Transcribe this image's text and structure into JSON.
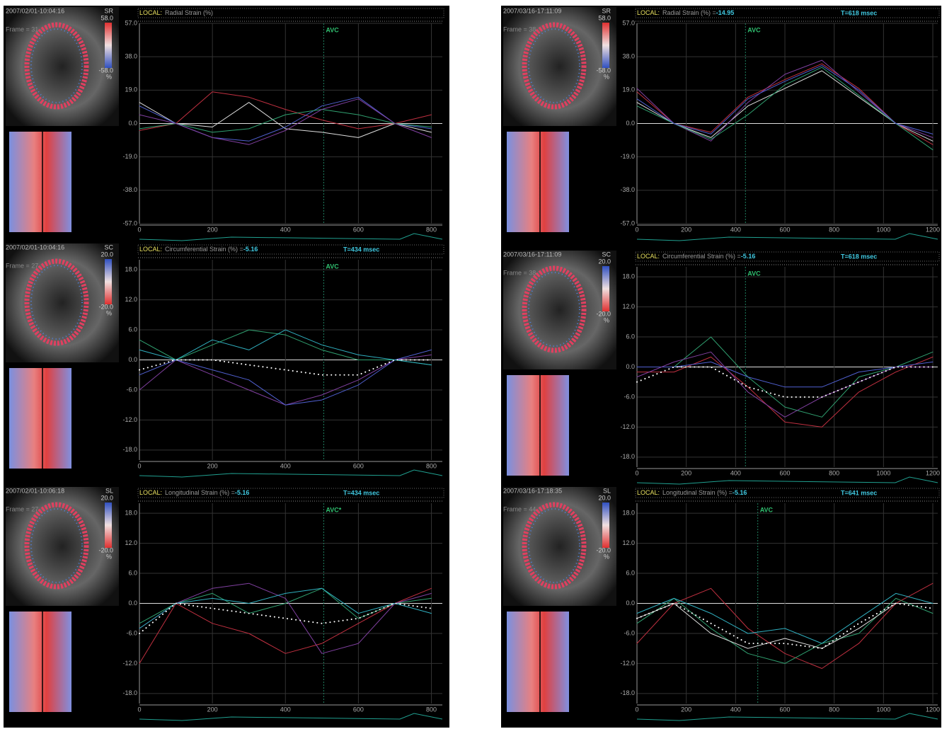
{
  "chart_data": [
    {
      "type": "line",
      "timestamp": "2007/02/01-10:04:16",
      "frame": "Frame = 31",
      "colorbar": {
        "label": "SR",
        "max": "58.0",
        "min": "-58.0",
        "unit": "%",
        "colors": [
          "#e03030",
          "#f0e0e0",
          "#3050c0"
        ]
      },
      "header": {
        "prefix": "LOCAL:",
        "title": "Radial Strain (%)"
      },
      "avc": {
        "label": "AVC",
        "x": 505
      },
      "xlim": [
        0,
        830
      ],
      "xticks": [
        0,
        200,
        400,
        600,
        800
      ],
      "ylim": [
        -57,
        57
      ],
      "yticks": [
        {
          "value": 57,
          "label": "57.0"
        },
        {
          "value": 38,
          "label": "38.0"
        },
        {
          "value": 19,
          "label": "19.0"
        },
        {
          "value": 0,
          "label": "0.0"
        },
        {
          "value": -19,
          "label": "-19.0"
        },
        {
          "value": -38,
          "label": "-38.0"
        },
        {
          "value": -57,
          "label": "-57.0"
        }
      ],
      "x": [
        0,
        100,
        200,
        300,
        400,
        500,
        600,
        700,
        800
      ],
      "series": [
        {
          "color": "#c03040",
          "values": [
            -4,
            0,
            18,
            15,
            8,
            2,
            -3,
            0,
            5
          ]
        },
        {
          "color": "#dddddd",
          "values": [
            12,
            0,
            -2,
            12,
            -3,
            -5,
            -8,
            0,
            -5
          ]
        },
        {
          "color": "#5060d0",
          "values": [
            10,
            0,
            -8,
            -10,
            -2,
            10,
            15,
            0,
            -3
          ]
        },
        {
          "color": "#30a070",
          "values": [
            -3,
            0,
            -5,
            -3,
            5,
            8,
            5,
            0,
            -2
          ]
        },
        {
          "color": "#8040a0",
          "values": [
            5,
            0,
            -8,
            -12,
            -4,
            8,
            14,
            0,
            -8
          ]
        }
      ]
    },
    {
      "type": "line",
      "timestamp": "2007/02/01-10:04:16",
      "frame": "Frame = 27",
      "colorbar": {
        "label": "SC",
        "max": "20.0",
        "min": "-20.0",
        "unit": "%",
        "colors": [
          "#3050c0",
          "#f0e0e0",
          "#e03030"
        ]
      },
      "header": {
        "prefix": "LOCAL:",
        "title": "Circumferential Strain (%) =",
        "value": -5.16,
        "time": "T=434 msec"
      },
      "avc": {
        "label": "AVC",
        "x": 505
      },
      "xlim": [
        0,
        830
      ],
      "xticks": [
        0,
        200,
        400,
        600,
        800
      ],
      "ylim": [
        -20,
        20
      ],
      "yticks": [
        {
          "value": 18,
          "label": "18.0"
        },
        {
          "value": 12,
          "label": "12.0"
        },
        {
          "value": 6,
          "label": "6.0"
        },
        {
          "value": 0,
          "label": "0.0"
        },
        {
          "value": -6,
          "label": "-6.0"
        },
        {
          "value": -12,
          "label": "-12.0"
        },
        {
          "value": -18,
          "label": "-18.0"
        }
      ],
      "x": [
        0,
        100,
        200,
        300,
        400,
        500,
        600,
        700,
        800
      ],
      "series": [
        {
          "color": "#30a070",
          "values": [
            4,
            0,
            3,
            6,
            5,
            2,
            0,
            0,
            -1
          ]
        },
        {
          "color": "#8040a0",
          "values": [
            -6,
            0,
            -3,
            -6,
            -9,
            -7,
            -4,
            0,
            1
          ]
        },
        {
          "color": "#5060d0",
          "values": [
            -3,
            0,
            -2,
            -4,
            -9,
            -8,
            -5,
            0,
            2
          ]
        },
        {
          "color": "#30b0c0",
          "values": [
            2,
            0,
            4,
            2,
            6,
            3,
            1,
            0,
            -1
          ]
        },
        {
          "color": "#ffffff",
          "dotted": true,
          "values": [
            -2,
            0,
            0,
            -1,
            -2,
            -3,
            -3,
            0,
            0
          ]
        }
      ]
    },
    {
      "type": "line",
      "timestamp": "2007/02/01-10:06:18",
      "frame": "Frame = 27",
      "colorbar": {
        "label": "SL",
        "max": "20.0",
        "min": "-20.0",
        "unit": "%",
        "colors": [
          "#3050c0",
          "#f0e0e0",
          "#e03030"
        ]
      },
      "header": {
        "prefix": "LOCAL:",
        "title": "Longitudinal Strain (%) =",
        "value": -5.16,
        "time": "T=434 msec"
      },
      "avc": {
        "label": "AVC*",
        "x": 505
      },
      "xlim": [
        0,
        830
      ],
      "xticks": [
        0,
        200,
        400,
        600,
        800
      ],
      "ylim": [
        -20,
        20
      ],
      "yticks": [
        {
          "value": 18,
          "label": "18.0"
        },
        {
          "value": 12,
          "label": "12.0"
        },
        {
          "value": 6,
          "label": "6.0"
        },
        {
          "value": 0,
          "label": "0.0"
        },
        {
          "value": -6,
          "label": "-6.0"
        },
        {
          "value": -12,
          "label": "-12.0"
        },
        {
          "value": -18,
          "label": "-18.0"
        }
      ],
      "x": [
        0,
        100,
        200,
        300,
        400,
        500,
        600,
        700,
        800
      ],
      "series": [
        {
          "color": "#c03040",
          "values": [
            -12,
            0,
            -4,
            -6,
            -10,
            -8,
            -4,
            0,
            3
          ]
        },
        {
          "color": "#30a070",
          "values": [
            -4,
            0,
            2,
            -2,
            0,
            3,
            -3,
            0,
            1
          ]
        },
        {
          "color": "#8040a0",
          "values": [
            -5,
            0,
            3,
            4,
            1,
            -10,
            -8,
            0,
            2
          ]
        },
        {
          "color": "#30b0c0",
          "values": [
            -5,
            0,
            1,
            0,
            2,
            3,
            -2,
            0,
            -2
          ]
        },
        {
          "color": "#ffffff",
          "dotted": true,
          "values": [
            -6,
            0,
            -1,
            -2,
            -3,
            -4,
            -3,
            0,
            -1
          ]
        }
      ]
    },
    {
      "type": "line",
      "timestamp": "2007/03/16-17:11:09",
      "frame": "Frame = 38",
      "colorbar": {
        "label": "SR",
        "max": "58.0",
        "min": "-58.0",
        "unit": "%",
        "colors": [
          "#e03030",
          "#f0e0e0",
          "#3050c0"
        ]
      },
      "header": {
        "prefix": "LOCAL:",
        "title": "Radial Strain (%) =",
        "value": -14.95,
        "time": "T=618 msec"
      },
      "avc": {
        "label": "AVC",
        "x": 440
      },
      "xlim": [
        0,
        1220
      ],
      "xticks": [
        0,
        200,
        400,
        600,
        800,
        1000,
        1200
      ],
      "ylim": [
        -57,
        57
      ],
      "yticks": [
        {
          "value": 57,
          "label": "57.0"
        },
        {
          "value": 38,
          "label": "38.0"
        },
        {
          "value": 19,
          "label": "19.0"
        },
        {
          "value": 0,
          "label": "0.0"
        },
        {
          "value": -19,
          "label": "-19.0"
        },
        {
          "value": -38,
          "label": "-38.0"
        },
        {
          "value": -57,
          "label": "-57.0"
        }
      ],
      "x": [
        0,
        150,
        300,
        450,
        600,
        750,
        900,
        1050,
        1200
      ],
      "series": [
        {
          "color": "#dddddd",
          "values": [
            12,
            0,
            -8,
            10,
            20,
            30,
            15,
            0,
            -10
          ]
        },
        {
          "color": "#c03040",
          "values": [
            18,
            0,
            -5,
            15,
            25,
            34,
            20,
            0,
            -12
          ]
        },
        {
          "color": "#8040a0",
          "values": [
            20,
            0,
            -10,
            12,
            28,
            36,
            18,
            0,
            -8
          ]
        },
        {
          "color": "#30a070",
          "values": [
            10,
            0,
            -9,
            5,
            22,
            32,
            16,
            0,
            -15
          ]
        },
        {
          "color": "#5060d0",
          "values": [
            14,
            0,
            -6,
            14,
            24,
            33,
            19,
            0,
            -6
          ]
        }
      ]
    },
    {
      "type": "line",
      "timestamp": "2007/03/16-17:11:09",
      "frame": "Frame = 38",
      "colorbar": {
        "label": "SC",
        "max": "20.0",
        "min": "-20.0",
        "unit": "%",
        "colors": [
          "#3050c0",
          "#f0e0e0",
          "#e03030"
        ]
      },
      "header": {
        "prefix": "LOCAL:",
        "title": "Circumferential Strain (%) =",
        "value": -5.16,
        "time": "T=618 msec"
      },
      "avc": {
        "label": "AVC",
        "x": 440
      },
      "xlim": [
        0,
        1220
      ],
      "xticks": [
        0,
        200,
        400,
        600,
        800,
        1000,
        1200
      ],
      "ylim": [
        -20,
        20
      ],
      "yticks": [
        {
          "value": 18,
          "label": "18.0"
        },
        {
          "value": 12,
          "label": "12.0"
        },
        {
          "value": 6,
          "label": "6.0"
        },
        {
          "value": 0,
          "label": "0.0"
        },
        {
          "value": -6,
          "label": "-6.0"
        },
        {
          "value": -12,
          "label": "-12.0"
        },
        {
          "value": -18,
          "label": "-18.0"
        }
      ],
      "x": [
        0,
        150,
        300,
        450,
        600,
        750,
        900,
        1050,
        1200
      ],
      "series": [
        {
          "color": "#30a070",
          "values": [
            0,
            0,
            6,
            -2,
            -8,
            -10,
            -2,
            0,
            3
          ]
        },
        {
          "color": "#c03040",
          "values": [
            -1,
            -1,
            2,
            -4,
            -11,
            -12,
            -5,
            -1,
            2
          ]
        },
        {
          "color": "#5060d0",
          "values": [
            0,
            0,
            1,
            -2,
            -4,
            -4,
            -1,
            0,
            1
          ]
        },
        {
          "color": "#8040a0",
          "values": [
            -2,
            1,
            3,
            -5,
            -10,
            -6,
            -3,
            0,
            0
          ]
        },
        {
          "color": "#ffffff",
          "dotted": true,
          "values": [
            -3,
            0,
            0,
            -4,
            -6,
            -6,
            -3,
            0,
            0
          ]
        }
      ]
    },
    {
      "type": "line",
      "timestamp": "2007/03/16-17:18:35",
      "frame": "Frame = 44",
      "colorbar": {
        "label": "SL",
        "max": "20.0",
        "min": "-20.0",
        "unit": "%",
        "colors": [
          "#3050c0",
          "#f0e0e0",
          "#e03030"
        ]
      },
      "header": {
        "prefix": "LOCAL:",
        "title": "Longitudinal Strain (%) =",
        "value": -5.16,
        "time": "T=641 msec"
      },
      "avc": {
        "label": "AVC",
        "x": 490
      },
      "xlim": [
        0,
        1220
      ],
      "xticks": [
        0,
        200,
        400,
        600,
        800,
        1000,
        1200
      ],
      "ylim": [
        -20,
        20
      ],
      "yticks": [
        {
          "value": 18,
          "label": "18.0"
        },
        {
          "value": 12,
          "label": "12.0"
        },
        {
          "value": 6,
          "label": "6.0"
        },
        {
          "value": 0,
          "label": "0.0"
        },
        {
          "value": -6,
          "label": "-6.0"
        },
        {
          "value": -12,
          "label": "-12.0"
        },
        {
          "value": -18,
          "label": "-18.0"
        }
      ],
      "x": [
        0,
        150,
        300,
        450,
        600,
        750,
        900,
        1050,
        1200
      ],
      "series": [
        {
          "color": "#c03040",
          "values": [
            -8,
            0,
            3,
            -5,
            -10,
            -13,
            -8,
            0,
            4
          ]
        },
        {
          "color": "#30a070",
          "values": [
            -4,
            1,
            -5,
            -10,
            -12,
            -8,
            -6,
            1,
            -2
          ]
        },
        {
          "color": "#dddddd",
          "values": [
            -3,
            0,
            -6,
            -9,
            -7,
            -9,
            -5,
            0,
            0
          ]
        },
        {
          "color": "#30b0c0",
          "values": [
            -2,
            1,
            -2,
            -6,
            -5,
            -8,
            -3,
            2,
            0
          ]
        },
        {
          "color": "#ffffff",
          "dotted": true,
          "values": [
            -3,
            0,
            -4,
            -8,
            -8,
            -9,
            -4,
            0,
            -1
          ]
        }
      ]
    }
  ]
}
